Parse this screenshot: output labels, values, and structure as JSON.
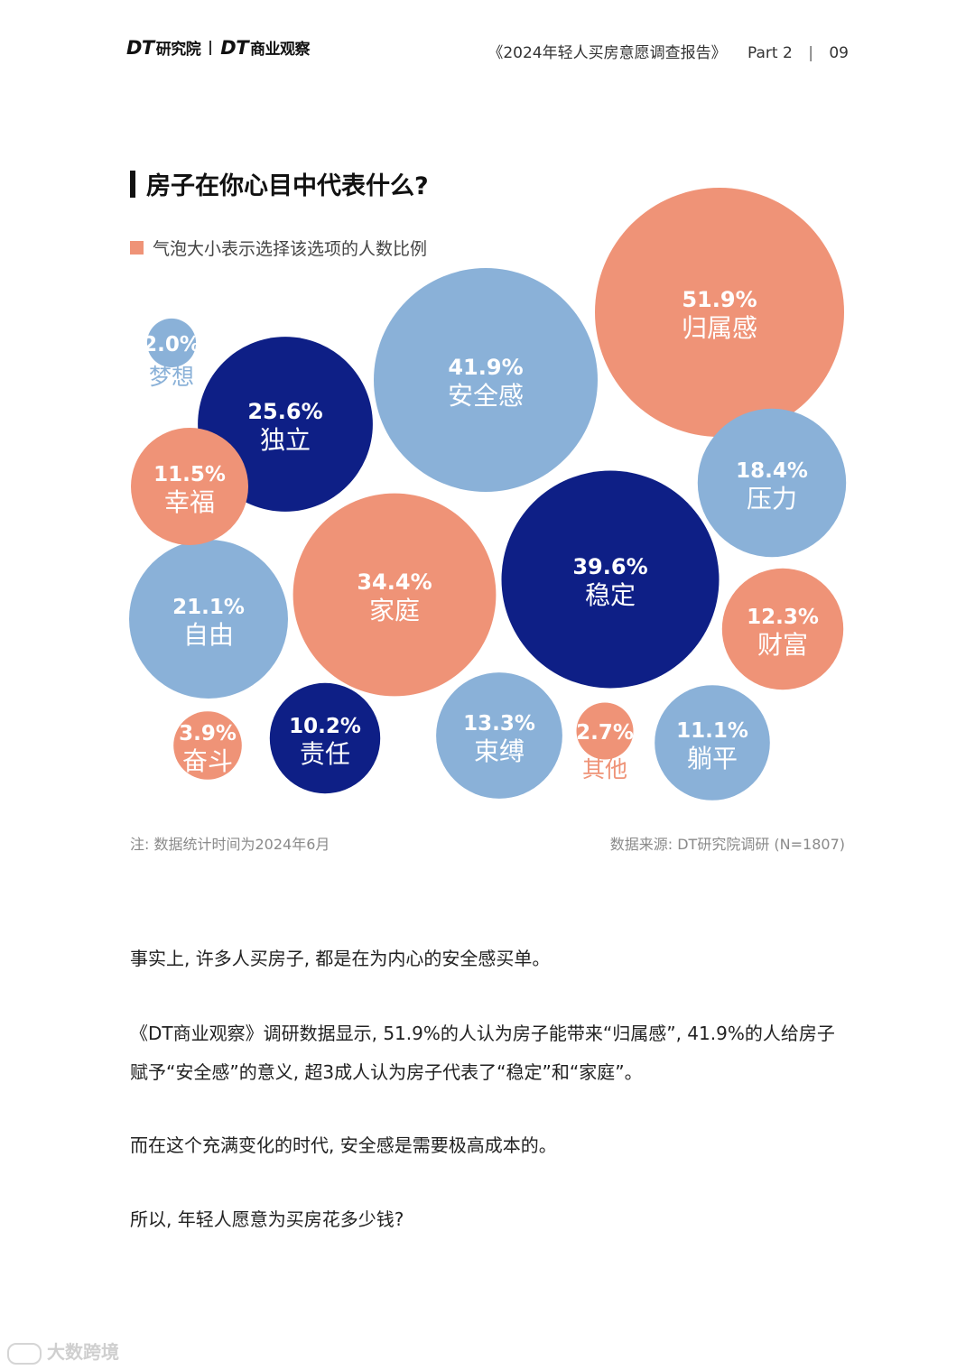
{
  "header": {
    "logo_left": "DT",
    "logo_left_sub": "研究院",
    "logo_right": "DT",
    "logo_right_sub": "商业观察",
    "report_title": "《2024年轻人买房意愿调查报告》",
    "part": "Part 2",
    "page_number": "09"
  },
  "chart_data": {
    "type": "bubble",
    "title": "房子在你心目中代表什么?",
    "legend": "气泡大小表示选择该选项的人数比例",
    "colors": {
      "salmon": "#ef9377",
      "light_blue": "#8ab1d8",
      "dark_blue": "#0e1f86"
    },
    "items": [
      {
        "label": "归属感",
        "value": 51.9,
        "value_label": "51.9%",
        "color": "salmon"
      },
      {
        "label": "安全感",
        "value": 41.9,
        "value_label": "41.9%",
        "color": "light_blue"
      },
      {
        "label": "稳定",
        "value": 39.6,
        "value_label": "39.6%",
        "color": "dark_blue"
      },
      {
        "label": "家庭",
        "value": 34.4,
        "value_label": "34.4%",
        "color": "salmon"
      },
      {
        "label": "独立",
        "value": 25.6,
        "value_label": "25.6%",
        "color": "dark_blue"
      },
      {
        "label": "自由",
        "value": 21.1,
        "value_label": "21.1%",
        "color": "light_blue"
      },
      {
        "label": "压力",
        "value": 18.4,
        "value_label": "18.4%",
        "color": "light_blue"
      },
      {
        "label": "束缚",
        "value": 13.3,
        "value_label": "13.3%",
        "color": "light_blue"
      },
      {
        "label": "财富",
        "value": 12.3,
        "value_label": "12.3%",
        "color": "salmon"
      },
      {
        "label": "幸福",
        "value": 11.5,
        "value_label": "11.5%",
        "color": "salmon"
      },
      {
        "label": "躺平",
        "value": 11.1,
        "value_label": "11.1%",
        "color": "light_blue"
      },
      {
        "label": "责任",
        "value": 10.2,
        "value_label": "10.2%",
        "color": "dark_blue"
      },
      {
        "label": "奋斗",
        "value": 3.9,
        "value_label": "3.9%",
        "color": "salmon"
      },
      {
        "label": "其他",
        "value": 2.7,
        "value_label": "2.7%",
        "color": "salmon"
      },
      {
        "label": "梦想",
        "value": 2.0,
        "value_label": "2.0%",
        "color": "light_blue"
      }
    ]
  },
  "footnotes": {
    "note": "注: 数据统计时间为2024年6月",
    "source": "数据来源: DT研究院调研 (N=1807)"
  },
  "body": {
    "p1": "事实上, 许多人买房子, 都是在为内心的安全感买单。",
    "p2": "《DT商业观察》调研数据显示, 51.9%的人认为房子能带来“归属感”, 41.9%的人给房子赋予“安全感”的意义, 超3成人认为房子代表了“稳定”和“家庭”。",
    "p3": "而在这个充满变化的时代, 安全感是需要极高成本的。",
    "p4": "所以, 年轻人愿意为买房花多少钱?"
  },
  "watermark": "大数跨境"
}
